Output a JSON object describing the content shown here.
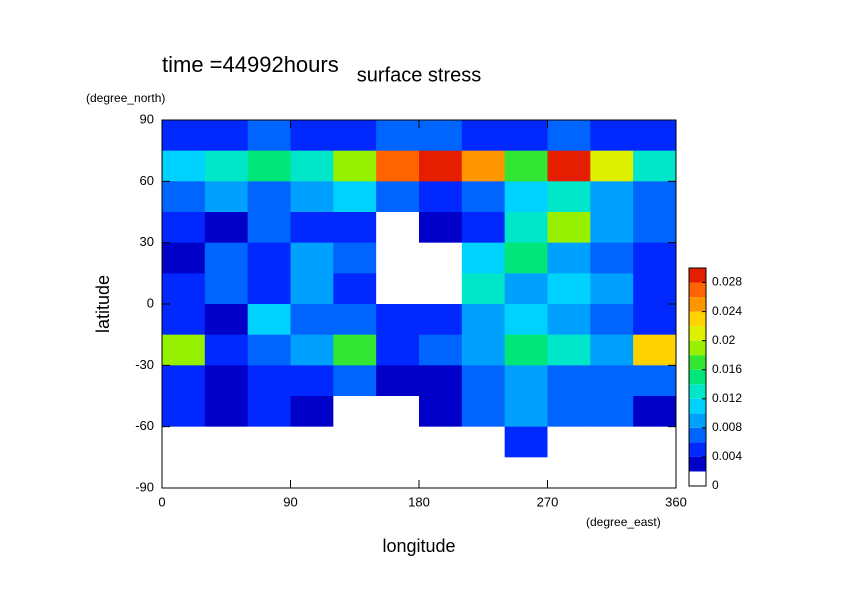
{
  "chart_data": {
    "type": "contour",
    "title": "surface stress",
    "subtitle": "time =44992hours",
    "x_label": "longitude",
    "y_label": "latitude",
    "x_unit": "(degree_east)",
    "y_unit": "(degree_north)",
    "x": [
      15,
      45,
      75,
      105,
      135,
      165,
      195,
      225,
      255,
      285,
      315,
      345
    ],
    "y": [
      82.5,
      67.5,
      52.5,
      37.5,
      22.5,
      7.5,
      -7.5,
      -22.5,
      -37.5,
      -52.5,
      -67.5,
      -82.5
    ],
    "z": [
      [
        0.005,
        0.005,
        0.006,
        0.005,
        0.005,
        0.006,
        0.006,
        0.005,
        0.005,
        0.006,
        0.005,
        0.005
      ],
      [
        0.01,
        0.012,
        0.014,
        0.012,
        0.018,
        0.026,
        0.03,
        0.024,
        0.016,
        0.03,
        0.02,
        0.012
      ],
      [
        0.006,
        0.008,
        0.006,
        0.008,
        0.01,
        0.006,
        0.004,
        0.006,
        0.01,
        0.012,
        0.008,
        0.006
      ],
      [
        0.004,
        0.003,
        0.006,
        0.004,
        0.004,
        0.001,
        0.003,
        0.004,
        0.012,
        0.018,
        0.008,
        0.006
      ],
      [
        0.002,
        0.006,
        0.004,
        0.008,
        0.006,
        0.001,
        0.001,
        0.01,
        0.014,
        0.008,
        0.006,
        0.004
      ],
      [
        0.004,
        0.006,
        0.004,
        0.008,
        0.004,
        0.001,
        0.001,
        0.012,
        0.008,
        0.01,
        0.008,
        0.004
      ],
      [
        0.004,
        0.002,
        0.01,
        0.006,
        0.006,
        0.004,
        0.004,
        0.008,
        0.01,
        0.008,
        0.006,
        0.004
      ],
      [
        0.018,
        0.004,
        0.006,
        0.008,
        0.016,
        0.004,
        0.006,
        0.008,
        0.014,
        0.012,
        0.008,
        0.022
      ],
      [
        0.004,
        0.002,
        0.004,
        0.004,
        0.006,
        0.003,
        0.002,
        0.006,
        0.008,
        0.006,
        0.006,
        0.006
      ],
      [
        0.004,
        0.003,
        0.004,
        0.002,
        0.001,
        0.001,
        0.002,
        0.006,
        0.008,
        0.006,
        0.006,
        0.002
      ],
      [
        0.001,
        0.001,
        0.001,
        0.001,
        0.001,
        0.001,
        0.001,
        0.001,
        0.004,
        0.001,
        0.001,
        0.001
      ],
      [
        0.001,
        0.001,
        0.001,
        0.001,
        0.001,
        0.001,
        0.001,
        0.001,
        0.001,
        0.001,
        0.001,
        0.001
      ]
    ],
    "xlim": [
      0,
      360
    ],
    "xticks": [
      0,
      90,
      180,
      270,
      360
    ],
    "ylim": [
      -90,
      90
    ],
    "yticks": [
      -90,
      -60,
      -30,
      0,
      30,
      60,
      90
    ],
    "colorbar": {
      "lim": [
        0,
        0.03
      ],
      "ticks": [
        0,
        0.004,
        0.008,
        0.012,
        0.016,
        0.02,
        0.024,
        0.028
      ],
      "colors": [
        "#ffffff",
        "#0000c8",
        "#0028ff",
        "#0064ff",
        "#00a0ff",
        "#00d2ff",
        "#00e6c8",
        "#00e678",
        "#32e632",
        "#96f000",
        "#dcf000",
        "#ffd200",
        "#ff9600",
        "#ff6400",
        "#e61e00"
      ]
    }
  }
}
